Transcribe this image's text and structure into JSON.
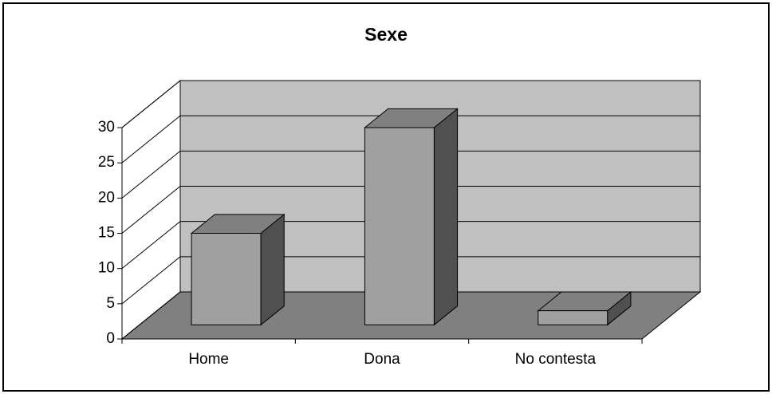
{
  "chart_data": {
    "type": "bar",
    "title": "Sexe",
    "categories": [
      "Home",
      "Dona",
      "No contesta"
    ],
    "values": [
      13,
      28,
      2
    ],
    "color": "#a0a0a0",
    "ylim": [
      0,
      30
    ],
    "yticks": [
      0,
      5,
      10,
      15,
      20,
      25,
      30
    ],
    "grid": true
  }
}
